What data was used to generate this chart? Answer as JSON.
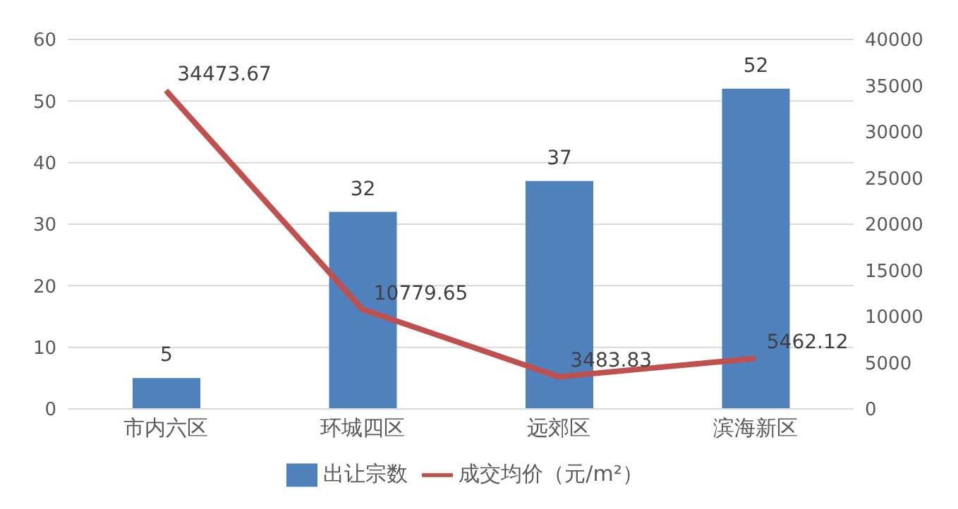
{
  "chart_data": {
    "type": "bar",
    "categories": [
      "市内六区",
      "环城四区",
      "远郊区",
      "滨海新区"
    ],
    "series": [
      {
        "name": "出让宗数",
        "color": "#4f81bd",
        "values": [
          5,
          32,
          37,
          52
        ]
      },
      {
        "name": "成交均价（元/m²）",
        "type": "line",
        "axis": "y2",
        "color": "#c0504d",
        "values": [
          34473.67,
          10779.65,
          3483.83,
          5462.12
        ]
      }
    ],
    "ylim": [
      0,
      60
    ],
    "yticks": [
      0,
      10,
      20,
      30,
      40,
      50,
      60
    ],
    "y2lim": [
      0,
      40000
    ],
    "y2ticks": [
      0,
      5000,
      10000,
      15000,
      20000,
      25000,
      30000,
      35000,
      40000
    ],
    "grid": "y",
    "legend": "bottom",
    "data_labels": true,
    "marker": "none"
  }
}
